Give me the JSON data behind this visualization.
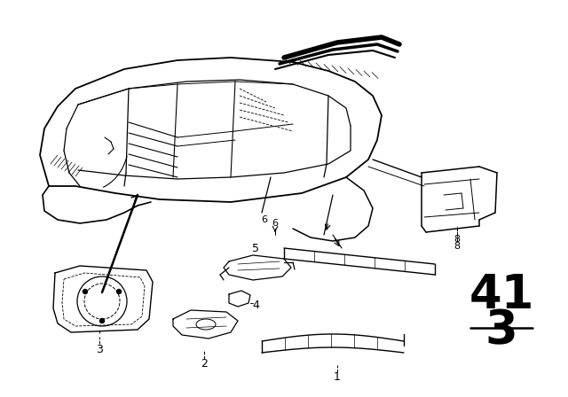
{
  "background_color": "#ffffff",
  "line_color": "#000000",
  "part_number_top": "41",
  "part_number_bottom": "3",
  "figsize": [
    6.4,
    4.48
  ],
  "dpi": 100
}
